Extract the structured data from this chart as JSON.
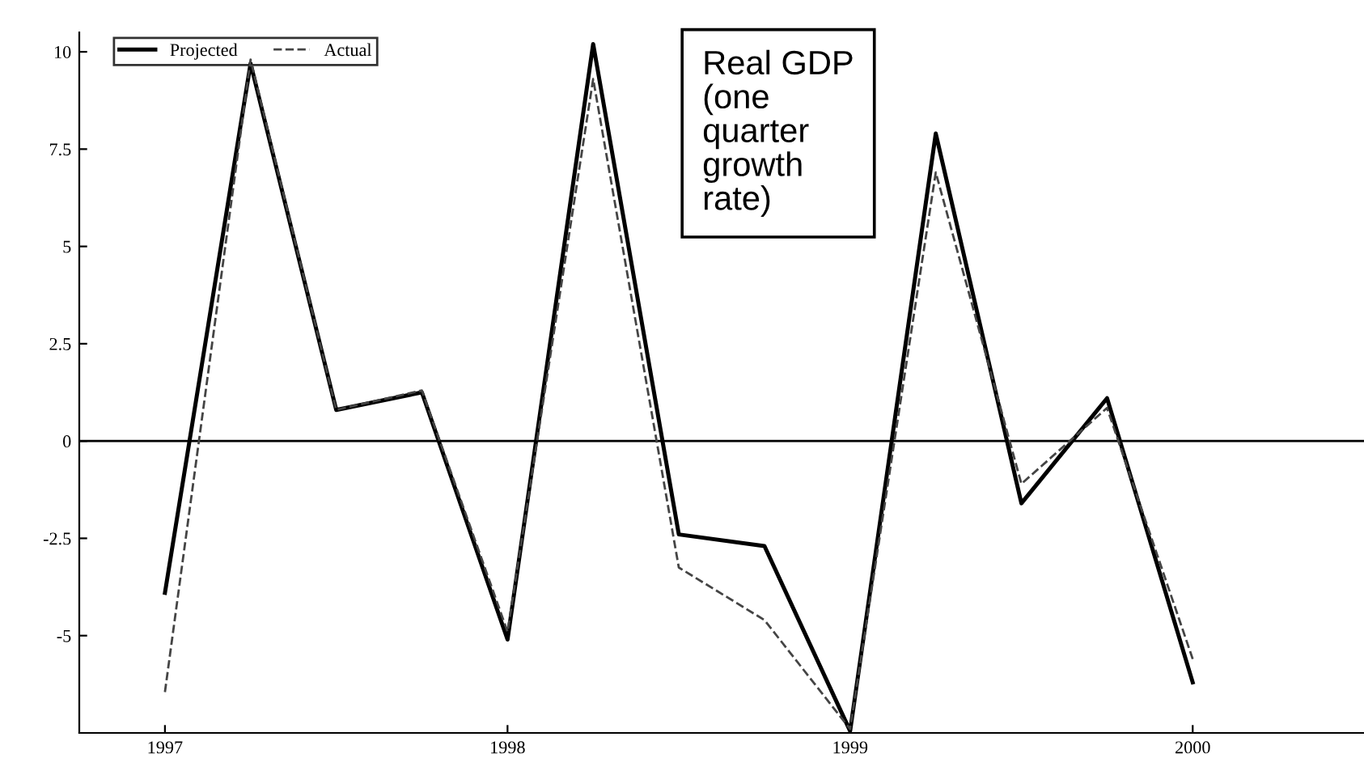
{
  "chart_data": {
    "type": "line",
    "x": [
      1997.0,
      1997.25,
      1997.5,
      1997.75,
      1998.0,
      1998.25,
      1998.5,
      1998.75,
      1999.0,
      1999.25,
      1999.5,
      1999.75,
      2000.0
    ],
    "series": [
      {
        "name": "Projected",
        "color": "#000000",
        "line_style": "solid",
        "values": [
          -3.9,
          9.7,
          0.8,
          1.25,
          -5.1,
          10.2,
          -2.4,
          -2.7,
          -7.45,
          7.9,
          -1.6,
          1.1,
          -6.2
        ]
      },
      {
        "name": "Actual",
        "color": "#444444",
        "line_style": "dashed",
        "values": [
          -6.45,
          9.8,
          0.8,
          1.3,
          -4.9,
          9.3,
          -3.25,
          -4.6,
          -7.4,
          6.9,
          -1.1,
          0.85,
          -5.6
        ]
      }
    ],
    "annotations": [
      "Real GDP (one quarter growth rate)"
    ],
    "ref_lines": [
      {
        "axis": "y",
        "value": 0
      }
    ],
    "xlim": [
      1996.75,
      2000.5
    ],
    "xticks": [
      1997,
      1998,
      1999,
      2000
    ],
    "ylim": [
      -7.5,
      10.5
    ],
    "yticks": [
      -5,
      -2.5,
      0,
      2.5,
      5,
      7.5,
      10
    ],
    "legend": "top left",
    "grid": false
  }
}
